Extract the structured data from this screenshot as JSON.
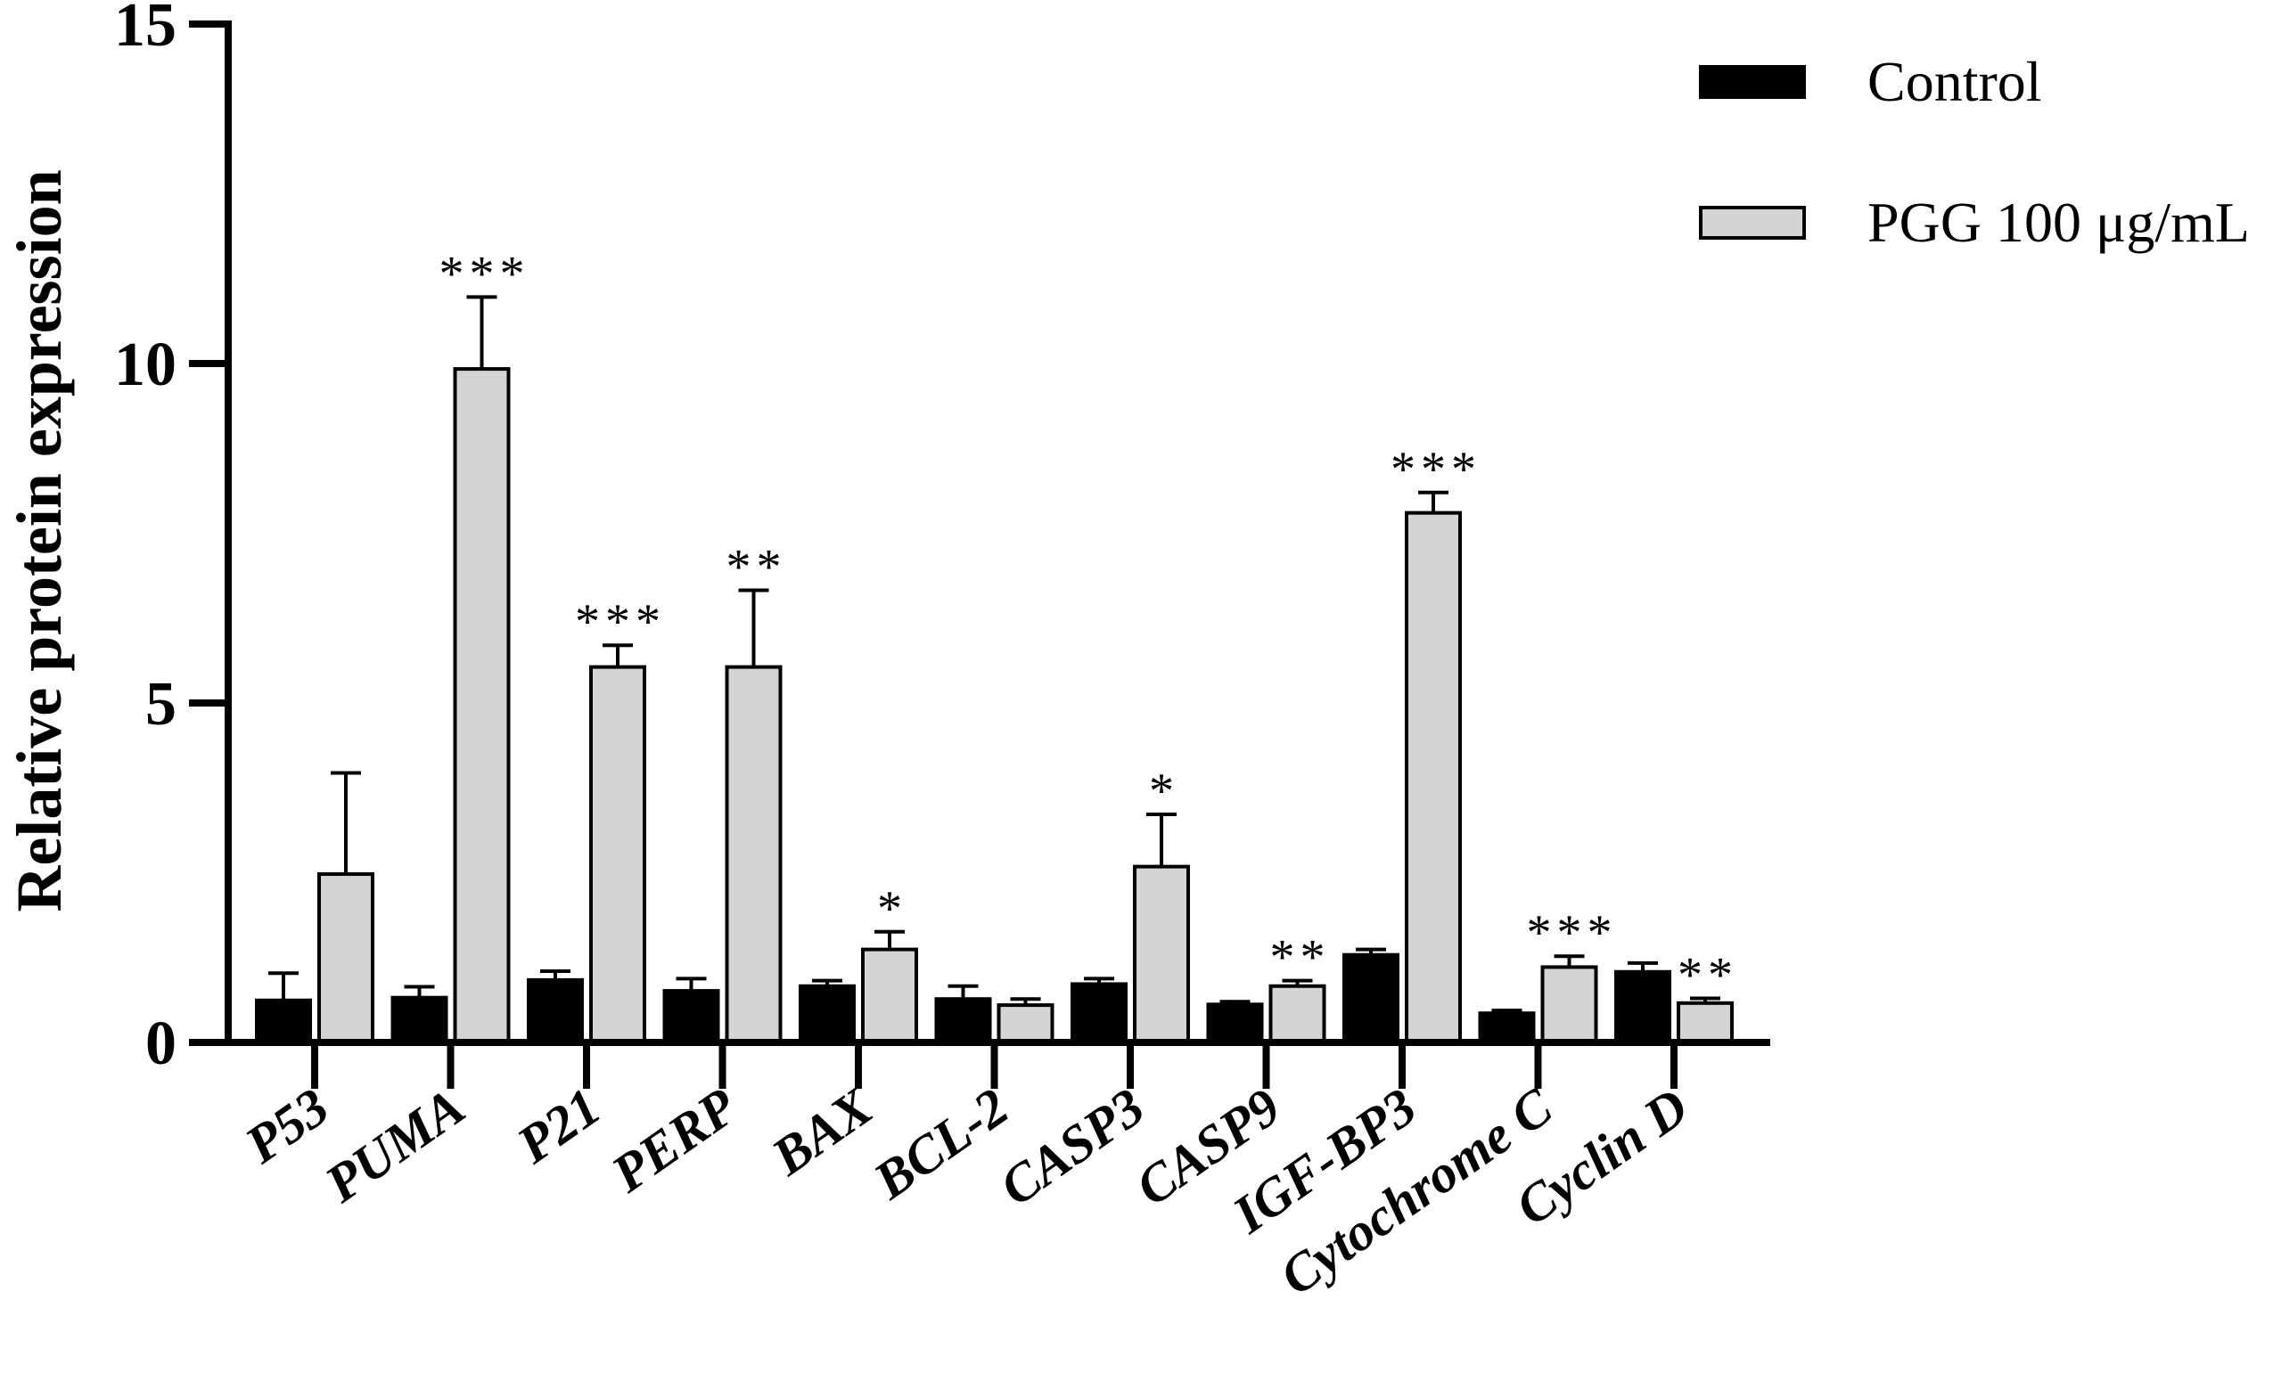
{
  "chart_data": {
    "type": "bar",
    "ylabel": "Relative protein expression",
    "ylim": [
      0,
      15
    ],
    "yticks": [
      0,
      5,
      10,
      15
    ],
    "categories": [
      "P53",
      "PUMA",
      "P21",
      "PERP",
      "BAX",
      "BCL-2",
      "CASP3",
      "CASP9",
      "IGF-BP3",
      "Cytochrome C",
      "Cyclin D"
    ],
    "series": [
      {
        "name": "Control",
        "color": "#000000",
        "values": [
          0.62,
          0.66,
          0.92,
          0.76,
          0.83,
          0.64,
          0.86,
          0.56,
          1.29,
          0.43,
          1.04
        ],
        "errors": [
          0.4,
          0.16,
          0.13,
          0.18,
          0.08,
          0.19,
          0.08,
          0.04,
          0.08,
          0.04,
          0.13
        ]
      },
      {
        "name": "PGG 100 μg/mL",
        "color": "#d4d4d4",
        "values": [
          2.48,
          9.92,
          5.53,
          5.53,
          1.37,
          0.55,
          2.59,
          0.83,
          7.8,
          1.11,
          0.58
        ],
        "errors": [
          1.49,
          1.06,
          0.32,
          1.13,
          0.26,
          0.09,
          0.77,
          0.08,
          0.3,
          0.16,
          0.07
        ]
      }
    ],
    "significance": [
      "",
      "***",
      "***",
      "**",
      "*",
      "",
      "*",
      "**",
      "***",
      "***",
      "**"
    ],
    "legend_position": "top-right"
  }
}
